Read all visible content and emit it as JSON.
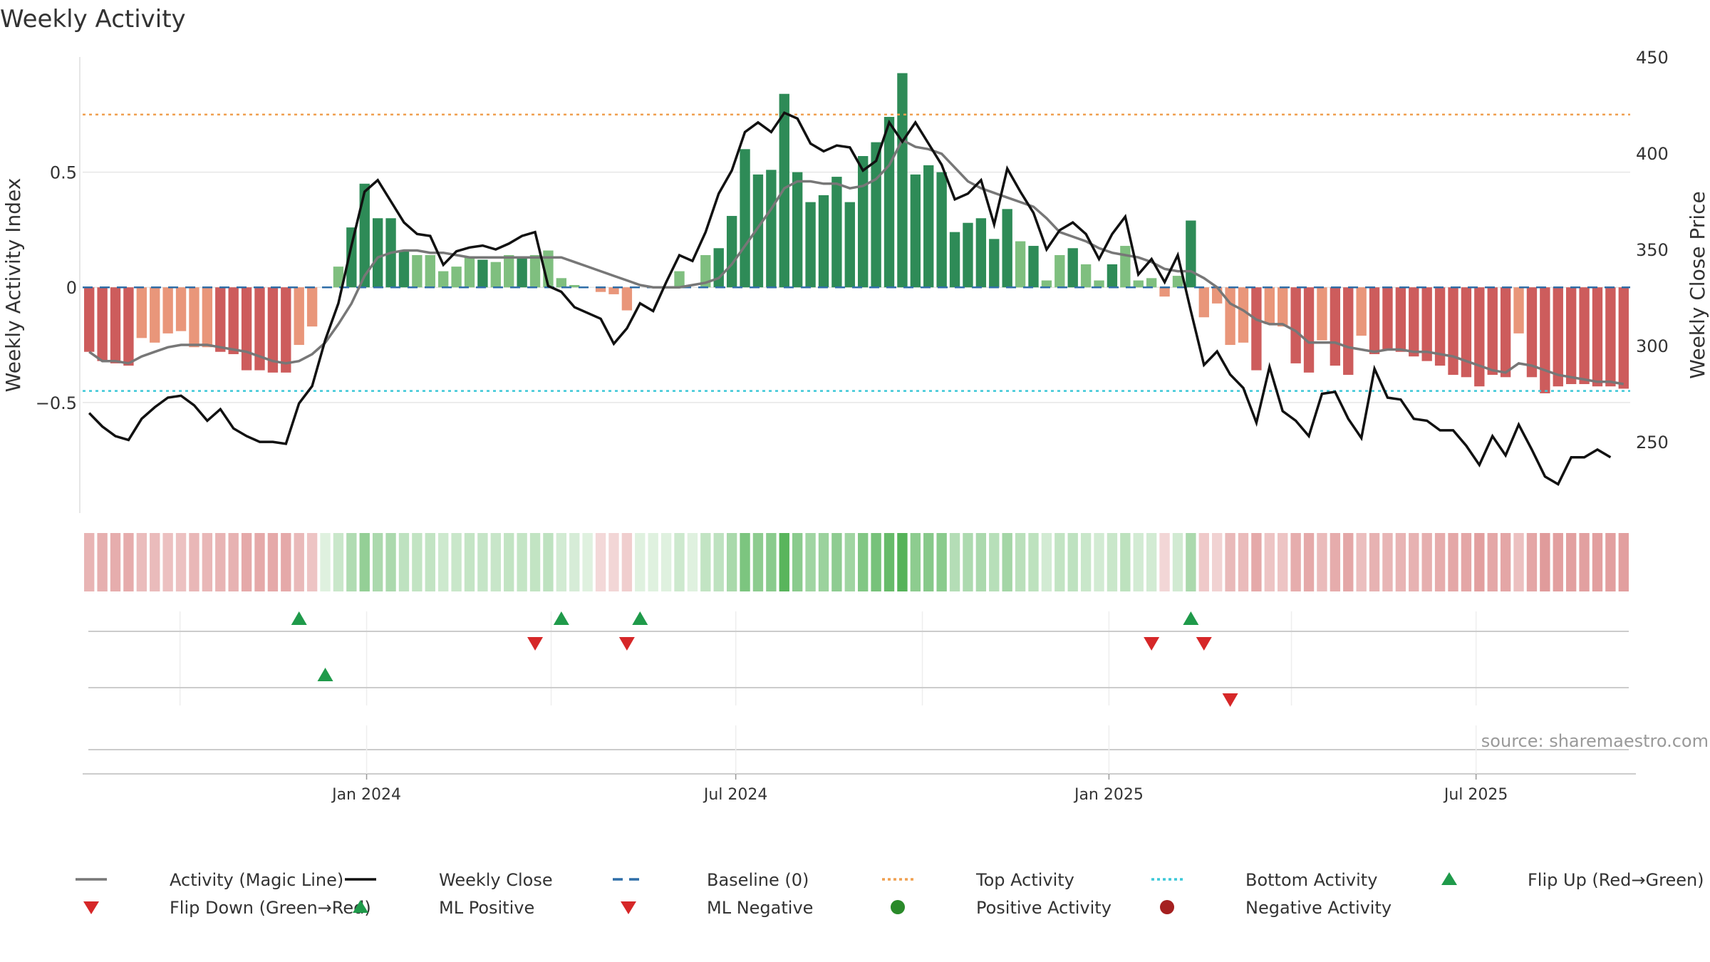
{
  "chart_data": {
    "type": "bar",
    "title": "Weekly Activity",
    "ylabel_left": "Weekly Activity Index",
    "ylabel_right": "Weekly Close Price",
    "source": "source: sharemaestro.com",
    "x_start": "2023-08-14",
    "x_end": "2025-09-15",
    "left_ylim": [
      -0.98,
      1.0
    ],
    "left_ticks": [
      0.5,
      0,
      -0.5
    ],
    "left_tick_labels": [
      "0.5",
      "0",
      "−0.5"
    ],
    "right_ylim": [
      213,
      450
    ],
    "right_ticks": [
      450,
      400,
      350,
      300,
      250
    ],
    "x_tick_labels": [
      {
        "date": "2024-01-01",
        "label": "Jan 2024"
      },
      {
        "date": "2024-07-01",
        "label": "Jul 2024"
      },
      {
        "date": "2025-01-01",
        "label": "Jan 2025"
      },
      {
        "date": "2025-07-01",
        "label": "Jul 2025"
      }
    ],
    "top_activity": 0.75,
    "bottom_activity": -0.45,
    "activity": [
      -0.28,
      -0.32,
      -0.33,
      -0.34,
      -0.22,
      -0.24,
      -0.2,
      -0.19,
      -0.26,
      -0.26,
      -0.28,
      -0.29,
      -0.36,
      -0.36,
      -0.37,
      -0.37,
      -0.25,
      -0.17,
      0,
      0.09,
      0.26,
      0.45,
      0.3,
      0.3,
      0.16,
      0.14,
      0.14,
      0.07,
      0.09,
      0.13,
      0.12,
      0.11,
      0.14,
      0.13,
      0.14,
      0.16,
      0.04,
      0.01,
      0,
      -0.02,
      -0.03,
      -0.1,
      0,
      0,
      0,
      0.07,
      0,
      0.14,
      0.17,
      0.31,
      0.6,
      0.49,
      0.51,
      0.84,
      0.5,
      0.37,
      0.4,
      0.48,
      0.37,
      0.57,
      0.63,
      0.74,
      0.93,
      0.49,
      0.53,
      0.5,
      0.24,
      0.28,
      0.3,
      0.21,
      0.34,
      0.2,
      0.18,
      0.03,
      0.14,
      0.17,
      0.1,
      0.03,
      0.1,
      0.18,
      0.03,
      0.04,
      -0.04,
      0.05,
      0.29,
      -0.13,
      -0.07,
      -0.25,
      -0.24,
      -0.36,
      -0.16,
      -0.17,
      -0.33,
      -0.37,
      -0.23,
      -0.34,
      -0.38,
      -0.21,
      -0.29,
      -0.27,
      -0.28,
      -0.3,
      -0.32,
      -0.34,
      -0.38,
      -0.39,
      -0.43,
      -0.38,
      -0.39,
      -0.2,
      -0.39,
      -0.46,
      -0.43,
      -0.42,
      -0.42,
      -0.43,
      -0.43,
      -0.44
    ],
    "magic_line": [
      -0.28,
      -0.32,
      -0.32,
      -0.33,
      -0.3,
      -0.28,
      -0.26,
      -0.25,
      -0.25,
      -0.25,
      -0.26,
      -0.27,
      -0.28,
      -0.3,
      -0.32,
      -0.33,
      -0.32,
      -0.29,
      -0.24,
      -0.16,
      -0.07,
      0.05,
      0.13,
      0.15,
      0.16,
      0.16,
      0.15,
      0.15,
      0.14,
      0.13,
      0.13,
      0.13,
      0.13,
      0.13,
      0.13,
      0.13,
      0.13,
      0.11,
      0.09,
      0.07,
      0.05,
      0.03,
      0.01,
      0.0,
      0.0,
      0.0,
      0.01,
      0.02,
      0.04,
      0.1,
      0.18,
      0.26,
      0.34,
      0.43,
      0.46,
      0.46,
      0.45,
      0.45,
      0.43,
      0.44,
      0.47,
      0.53,
      0.64,
      0.61,
      0.6,
      0.58,
      0.52,
      0.46,
      0.43,
      0.41,
      0.39,
      0.37,
      0.35,
      0.3,
      0.24,
      0.22,
      0.2,
      0.17,
      0.15,
      0.14,
      0.13,
      0.11,
      0.08,
      0.07,
      0.07,
      0.04,
      0.0,
      -0.07,
      -0.1,
      -0.14,
      -0.16,
      -0.16,
      -0.19,
      -0.24,
      -0.24,
      -0.24,
      -0.26,
      -0.27,
      -0.28,
      -0.27,
      -0.27,
      -0.28,
      -0.28,
      -0.29,
      -0.3,
      -0.32,
      -0.34,
      -0.36,
      -0.37,
      -0.33,
      -0.34,
      -0.36,
      -0.38,
      -0.39,
      -0.4,
      -0.41,
      -0.41,
      -0.42
    ],
    "weekly_close": [
      265,
      258,
      253,
      251,
      262,
      268,
      273,
      274,
      269,
      261,
      267,
      257,
      253,
      250,
      250,
      249,
      270,
      279,
      303,
      322,
      352,
      380,
      386,
      375,
      364,
      358,
      357,
      342,
      349,
      351,
      352,
      350,
      353,
      357,
      359,
      331,
      328,
      320,
      317,
      314,
      301,
      309,
      322,
      318,
      333,
      347,
      344,
      359,
      379,
      391,
      411,
      416,
      411,
      421,
      418,
      405,
      401,
      404,
      403,
      391,
      396,
      416,
      406,
      416,
      405,
      394,
      376,
      379,
      386,
      363,
      392,
      380,
      369,
      350,
      360,
      364,
      358,
      345,
      358,
      367,
      337,
      345,
      333,
      347,
      318,
      290,
      297,
      285,
      278,
      260,
      289,
      266,
      261,
      253,
      275,
      276,
      262,
      252,
      288,
      273,
      272,
      262,
      261,
      256,
      256,
      248,
      238,
      253,
      243,
      259,
      246,
      232,
      228,
      242,
      242,
      246,
      242
    ],
    "flip_up_row1_dates": [
      "2023-11-27",
      "2024-04-08",
      "2024-05-13",
      "2025-02-10"
    ],
    "flip_down_row1_dates": [
      "2024-03-25",
      "2024-05-06",
      "2025-01-20",
      "2025-02-17"
    ],
    "ml_positive_row2_dates": [
      "2023-12-11"
    ],
    "ml_negative_row2_dates": [
      "2025-03-03"
    ],
    "legend": [
      {
        "label": "Activity (Magic Line)",
        "kind": "line",
        "color": "#777777"
      },
      {
        "label": "Weekly Close",
        "kind": "line",
        "color": "#111111"
      },
      {
        "label": "Baseline (0)",
        "kind": "dashed",
        "color": "#2f6ea8"
      },
      {
        "label": "Top Activity",
        "kind": "dotted",
        "color": "#f0a050"
      },
      {
        "label": "Bottom Activity",
        "kind": "dotted",
        "color": "#3cc8d8"
      },
      {
        "label": "Flip Up (Red→Green)",
        "kind": "triangle-up",
        "color": "#1f9a4a"
      },
      {
        "label": "Flip Down (Green→Red)",
        "kind": "triangle-down",
        "color": "#d62728"
      },
      {
        "label": "ML Positive",
        "kind": "triangle-up",
        "color": "#1f9a4a"
      },
      {
        "label": "ML Negative",
        "kind": "triangle-down",
        "color": "#d62728"
      },
      {
        "label": "Positive Activity",
        "kind": "circle",
        "color": "#2a8a2a"
      },
      {
        "label": "Negative Activity",
        "kind": "circle",
        "color": "#a52020"
      }
    ],
    "colors": {
      "strong_green": "#2e8b57",
      "light_green": "#7fbf7f",
      "strong_red": "#cd5c5c",
      "light_red": "#e9967a",
      "grid": "#e6e6e6",
      "axis": "#cccccc"
    }
  }
}
